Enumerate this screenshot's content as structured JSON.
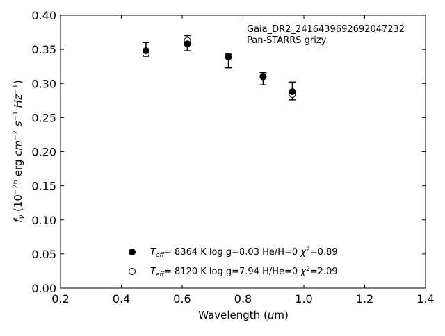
{
  "chart_data": {
    "type": "scatter",
    "xlabel": "Wavelength (μm)",
    "ylabel": "f_ν (10^-26 erg cm^-2 s^-1 Hz^-1)",
    "xlim": [
      0.2,
      1.4
    ],
    "ylim": [
      0.0,
      0.4
    ],
    "x_ticks": [
      "0.2",
      "0.4",
      "0.6",
      "0.8",
      "1.0",
      "1.2",
      "1.4"
    ],
    "y_ticks": [
      "0.00",
      "0.05",
      "0.10",
      "0.15",
      "0.20",
      "0.25",
      "0.30",
      "0.35",
      "0.40"
    ],
    "grid": false,
    "annotations": [
      "Gaia_DR2_2416439692692047232",
      "Pan-STARRS grizy"
    ],
    "observed": {
      "x": [
        0.481,
        0.617,
        0.752,
        0.866,
        0.962
      ],
      "y": [
        0.35,
        0.359,
        0.333,
        0.307,
        0.289
      ],
      "yerr": [
        0.01,
        0.011,
        0.01,
        0.009,
        0.013
      ]
    },
    "series": [
      {
        "name": "T_eff= 8364 K log g=8.03 He/H=0 χ²=0.89",
        "marker": "filled-circle",
        "x": [
          0.481,
          0.617,
          0.752,
          0.866,
          0.962
        ],
        "y": [
          0.348,
          0.358,
          0.339,
          0.31,
          0.288
        ]
      },
      {
        "name": "T_eff= 8120 K log g=7.94 H/He=0 χ²=2.09",
        "marker": "open-circle",
        "x": [
          0.481,
          0.617,
          0.752,
          0.866,
          0.962
        ],
        "y": [
          0.344,
          0.363,
          0.339,
          0.31,
          0.284
        ]
      }
    ],
    "legend": {
      "position": "lower-center",
      "entries": [
        {
          "teff": "8364 K",
          "logg": "log g=8.03",
          "comp": "He/H=0",
          "chi": "=0.89"
        },
        {
          "teff": "8120 K",
          "logg": "log g=7.94",
          "comp": "H/He=0",
          "chi": "=2.09"
        }
      ]
    }
  }
}
